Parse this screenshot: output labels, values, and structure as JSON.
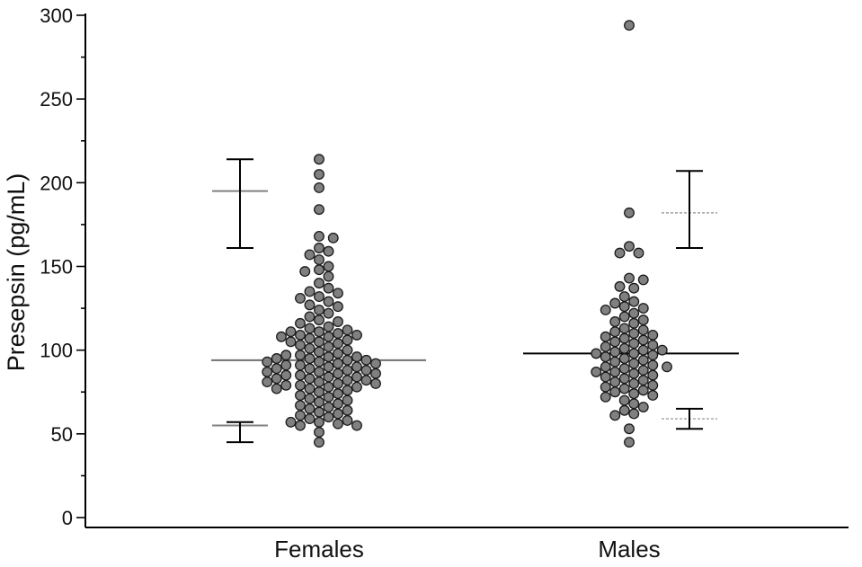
{
  "chart_data": {
    "type": "scatter",
    "subtype": "dot-plot-with-reference-intervals",
    "ylabel": "Presepsin (pg/mL)",
    "ylim": [
      0,
      300
    ],
    "yticks": [
      0,
      50,
      100,
      150,
      200,
      250,
      300
    ],
    "categories": [
      "Females",
      "Males"
    ],
    "grid": false,
    "colors": {
      "points": "#808080",
      "point_outline": "#1a1a1a",
      "median_female": "#707070",
      "median_male": "#000000",
      "limit_female": "#808080",
      "limit_male": "#a0a0a0"
    },
    "groups": [
      {
        "category": "Females",
        "median": 94,
        "lower_limit": 55,
        "lower_limit_ci": [
          45,
          57
        ],
        "upper_limit": 195,
        "upper_limit_ci": [
          161,
          214
        ],
        "values": [
          214,
          205,
          197,
          184,
          168,
          167,
          161,
          159,
          157,
          154,
          150,
          148,
          147,
          144,
          140,
          137,
          135,
          134,
          132,
          131,
          129,
          127,
          126,
          124,
          122,
          120,
          118,
          117,
          116,
          114,
          113,
          112,
          111,
          111,
          110,
          109,
          109,
          108,
          108,
          107,
          106,
          105,
          105,
          104,
          103,
          102,
          101,
          100,
          99,
          98,
          97,
          97,
          96,
          96,
          95,
          95,
          94,
          94,
          93,
          93,
          92,
          92,
          91,
          91,
          90,
          90,
          89,
          89,
          88,
          88,
          87,
          87,
          86,
          86,
          85,
          85,
          84,
          84,
          83,
          83,
          82,
          82,
          81,
          81,
          80,
          80,
          79,
          79,
          78,
          78,
          77,
          77,
          76,
          75,
          74,
          73,
          72,
          71,
          70,
          69,
          68,
          67,
          66,
          65,
          64,
          63,
          62,
          61,
          60,
          59,
          58,
          57,
          57,
          56,
          55,
          55,
          51,
          45
        ]
      },
      {
        "category": "Males",
        "median": 98,
        "lower_limit": 59,
        "lower_limit_ci": [
          53,
          65
        ],
        "upper_limit": 182,
        "upper_limit_ci": [
          161,
          207
        ],
        "values": [
          294,
          182,
          162,
          158,
          158,
          143,
          142,
          138,
          137,
          132,
          129,
          128,
          126,
          125,
          124,
          122,
          120,
          118,
          117,
          116,
          113,
          112,
          111,
          110,
          109,
          108,
          107,
          106,
          105,
          104,
          103,
          102,
          101,
          100,
          100,
          99,
          98,
          98,
          97,
          96,
          95,
          94,
          93,
          92,
          91,
          90,
          90,
          89,
          88,
          87,
          87,
          86,
          85,
          84,
          83,
          82,
          81,
          80,
          79,
          78,
          77,
          76,
          75,
          74,
          73,
          72,
          70,
          68,
          66,
          64,
          62,
          61,
          53,
          45
        ]
      }
    ]
  }
}
